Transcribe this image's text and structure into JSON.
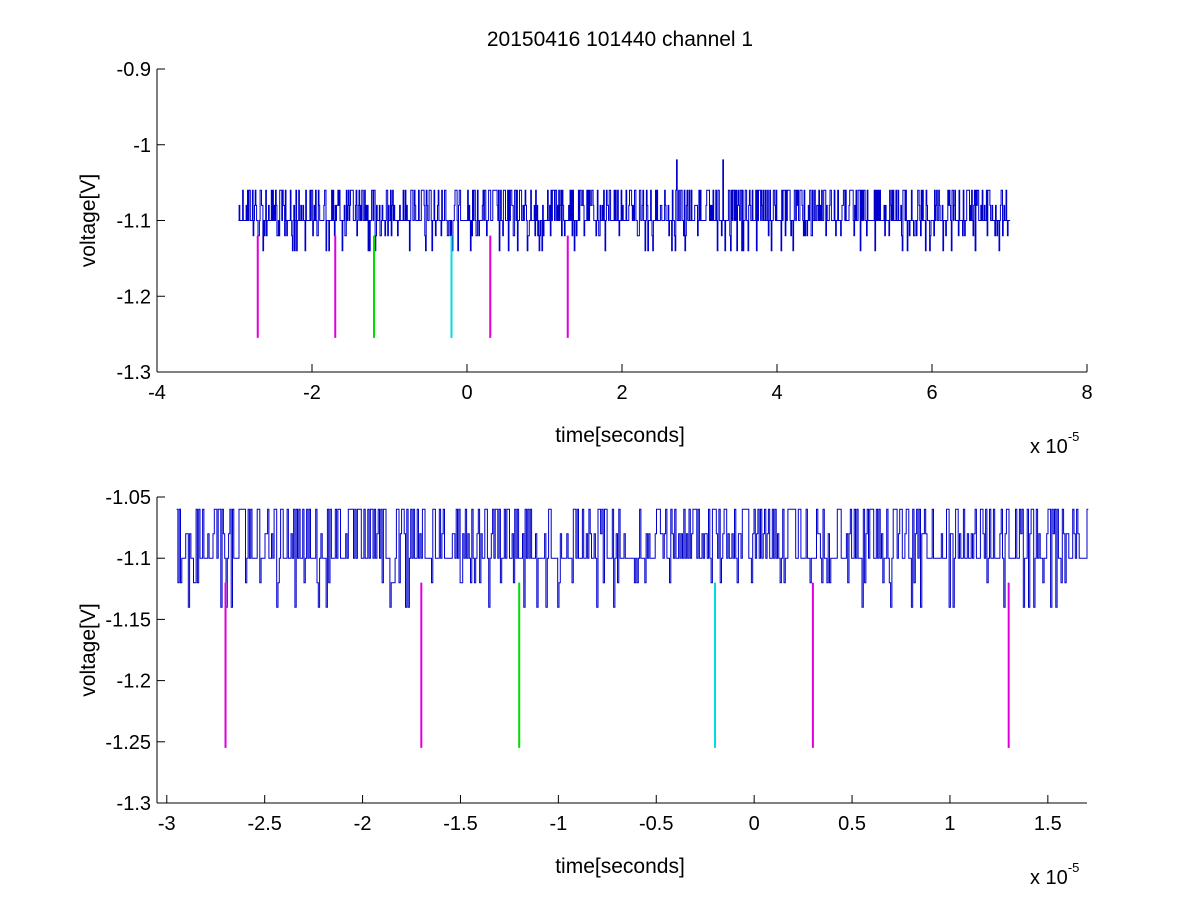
{
  "chart_data": [
    {
      "type": "line",
      "title": "20150416 101440 channel 1",
      "xlabel": "time[seconds]",
      "ylabel": "voltage[V]",
      "x_exponent_label": "x 10",
      "x_exponent": "-5",
      "xlim": [
        -4,
        8
      ],
      "ylim": [
        -1.3,
        -0.9
      ],
      "xticks": [
        -4,
        -2,
        0,
        2,
        4,
        6,
        8
      ],
      "xtick_labels": [
        "-4",
        "-2",
        "0",
        "2",
        "4",
        "6",
        "8"
      ],
      "yticks": [
        -1.3,
        -1.2,
        -1.1,
        -1.0,
        -0.9
      ],
      "ytick_labels": [
        "-1.3",
        "-1.2",
        "-1.1",
        "-1",
        "-0.9"
      ],
      "grid": false,
      "trace": {
        "color": "#0000cc",
        "x_start": -2.95,
        "x_end": 7.0,
        "baseline": -1.1,
        "levels": [
          -1.14,
          -1.12,
          -1.1,
          -1.08,
          -1.06
        ],
        "spikes": [
          {
            "x": 2.7,
            "y": -1.02
          },
          {
            "x": 3.3,
            "y": -1.02
          }
        ]
      },
      "markers": [
        {
          "x": -2.7,
          "color": "#dd00dd",
          "y_top": -1.12,
          "y_bottom": -1.255
        },
        {
          "x": -1.7,
          "color": "#dd00dd",
          "y_top": -1.12,
          "y_bottom": -1.255
        },
        {
          "x": -1.2,
          "color": "#00dd00",
          "y_top": -1.12,
          "y_bottom": -1.255
        },
        {
          "x": -0.2,
          "color": "#00dddd",
          "y_top": -1.12,
          "y_bottom": -1.255
        },
        {
          "x": 0.3,
          "color": "#dd00dd",
          "y_top": -1.12,
          "y_bottom": -1.255
        },
        {
          "x": 1.3,
          "color": "#dd00dd",
          "y_top": -1.12,
          "y_bottom": -1.255
        }
      ]
    },
    {
      "type": "line",
      "title": "",
      "xlabel": "time[seconds]",
      "ylabel": "voltage[V]",
      "x_exponent_label": "x 10",
      "x_exponent": "-5",
      "xlim": [
        -3.05,
        1.7
      ],
      "ylim": [
        -1.3,
        -1.05
      ],
      "xticks": [
        -3,
        -2.5,
        -2,
        -1.5,
        -1,
        -0.5,
        0,
        0.5,
        1,
        1.5
      ],
      "xtick_labels": [
        "-3",
        "-2.5",
        "-2",
        "-1.5",
        "-1",
        "-0.5",
        "0",
        "0.5",
        "1",
        "1.5"
      ],
      "yticks": [
        -1.3,
        -1.25,
        -1.2,
        -1.15,
        -1.1,
        -1.05
      ],
      "ytick_labels": [
        "-1.3",
        "-1.25",
        "-1.2",
        "-1.15",
        "-1.1",
        "-1.05"
      ],
      "grid": false,
      "trace": {
        "color": "#0000cc",
        "x_start": -2.95,
        "x_end": 1.7,
        "baseline": -1.1,
        "levels": [
          -1.14,
          -1.12,
          -1.1,
          -1.08,
          -1.06
        ],
        "spikes": []
      },
      "markers": [
        {
          "x": -2.7,
          "color": "#dd00dd",
          "y_top": -1.12,
          "y_bottom": -1.255
        },
        {
          "x": -1.7,
          "color": "#dd00dd",
          "y_top": -1.12,
          "y_bottom": -1.255
        },
        {
          "x": -1.2,
          "color": "#00dd00",
          "y_top": -1.12,
          "y_bottom": -1.255
        },
        {
          "x": -0.2,
          "color": "#00dddd",
          "y_top": -1.12,
          "y_bottom": -1.255
        },
        {
          "x": 0.3,
          "color": "#dd00dd",
          "y_top": -1.12,
          "y_bottom": -1.255
        },
        {
          "x": 1.3,
          "color": "#dd00dd",
          "y_top": -1.12,
          "y_bottom": -1.255
        }
      ]
    }
  ]
}
